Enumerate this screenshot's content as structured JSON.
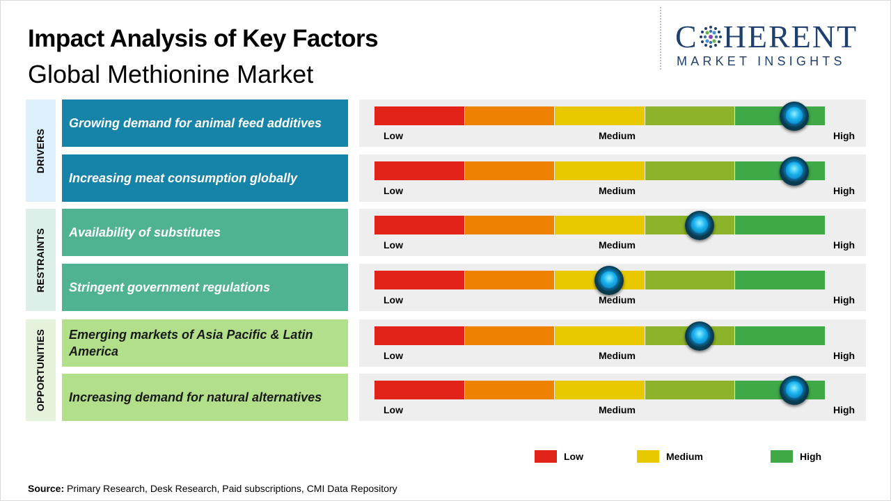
{
  "title": "Impact Analysis of Key Factors",
  "subtitle": "Global Methionine Market",
  "logo": {
    "brand": "C HERENT",
    "tagline": "MARKET INSIGHTS"
  },
  "colors": {
    "low": "#e2231a",
    "low_mid": "#ee8200",
    "medium": "#e8c900",
    "mid_high": "#8db32a",
    "high": "#3fa948"
  },
  "chart_data": {
    "type": "table",
    "scale_labels": [
      "Low",
      "Medium",
      "High"
    ],
    "categories": [
      {
        "name": "DRIVERS",
        "color": "#ddeffb"
      },
      {
        "name": "RESTRAINTS",
        "color": "#dcefe9"
      },
      {
        "name": "OPPORTUNITIES",
        "color": "#e6f3dc"
      }
    ],
    "rows": [
      {
        "category": "DRIVERS",
        "factor": "Growing demand for animal feed additives",
        "impact": 0.93
      },
      {
        "category": "DRIVERS",
        "factor": "Increasing meat consumption globally",
        "impact": 0.93
      },
      {
        "category": "RESTRAINTS",
        "factor": "Availability of substitutes",
        "impact": 0.72
      },
      {
        "category": "RESTRAINTS",
        "factor": "Stringent government regulations",
        "impact": 0.52
      },
      {
        "category": "OPPORTUNITIES",
        "factor": "Emerging markets of Asia Pacific & Latin America",
        "impact": 0.72
      },
      {
        "category": "OPPORTUNITIES",
        "factor": "Increasing demand for natural alternatives",
        "impact": 0.93
      }
    ],
    "legend": [
      {
        "label": "Low",
        "color": "#e2231a"
      },
      {
        "label": "Medium",
        "color": "#e8c900"
      },
      {
        "label": "High",
        "color": "#3fa948"
      }
    ]
  },
  "source": {
    "label": "Source:",
    "text": " Primary Research, Desk Research, Paid subscriptions, CMI Data Repository"
  }
}
